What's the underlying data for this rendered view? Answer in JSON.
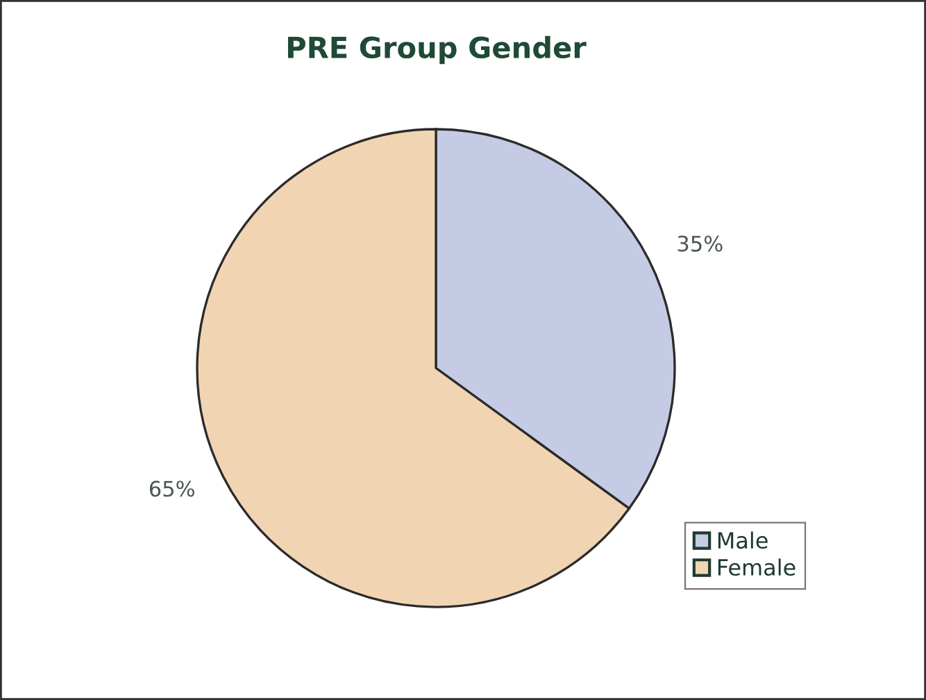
{
  "chart_data": {
    "type": "pie",
    "title": "PRE Group Gender",
    "categories": [
      "Male",
      "Female"
    ],
    "values": [
      35,
      65
    ],
    "colors": [
      "#c5cbe4",
      "#f1d5b3"
    ],
    "value_labels": [
      "35%",
      "65%"
    ],
    "legend": "bottom right"
  }
}
